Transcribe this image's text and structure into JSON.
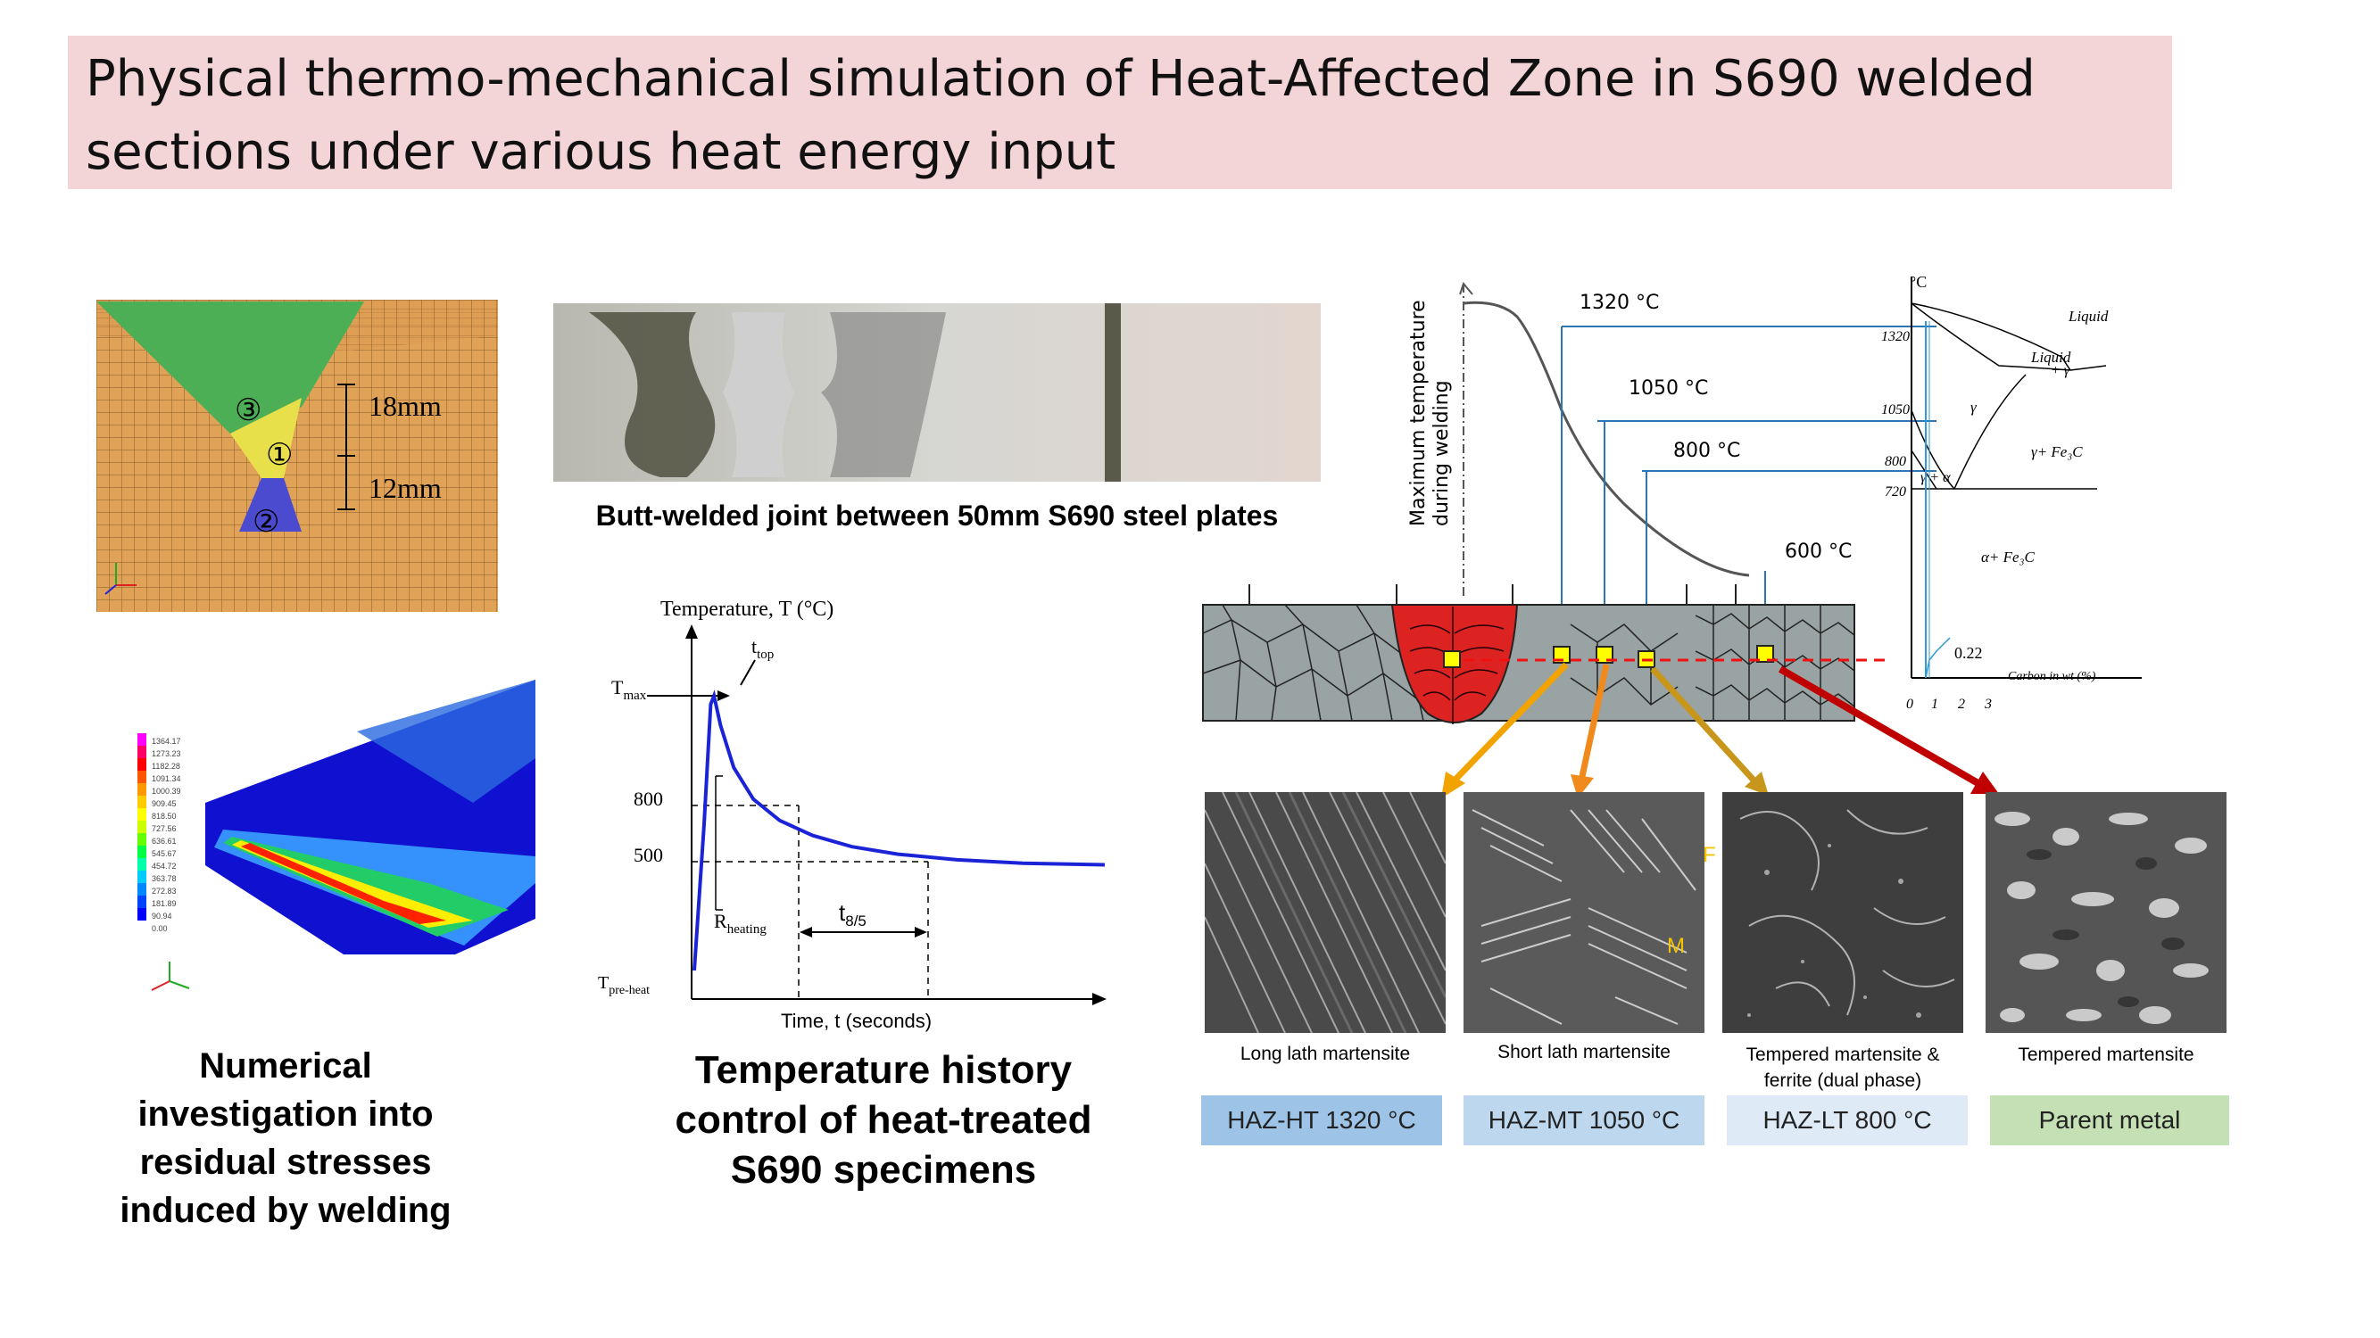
{
  "title": {
    "line1": "Physical thermo-mechanical simulation of Heat-Affected Zone in S690 welded",
    "line2": "sections under various heat energy input"
  },
  "fe_model": {
    "dim_top": "18mm",
    "dim_bottom": "12mm",
    "pass_1": "①",
    "pass_2": "②",
    "pass_3": "③"
  },
  "photo_caption": "Butt-welded joint between 50mm S690 steel plates",
  "stress_caption": [
    "Numerical",
    "investigation into",
    "residual stresses",
    "induced by welding"
  ],
  "stress_legend": [
    "1364.17",
    "1273.23",
    "1182.28",
    "1091.34",
    "1000.39",
    "909.45",
    "818.50",
    "727.56",
    "636.61",
    "545.67",
    "454.72",
    "363.78",
    "272.83",
    "181.89",
    "90.94",
    "0.00"
  ],
  "thermal_chart": {
    "ylabel": "Temperature, T (°C)",
    "xlabel": "Time, t (seconds)",
    "tmax": "T",
    "tmax_sub": "max",
    "ttop": "t",
    "ttop_sub": "top",
    "tpre": "T",
    "tpre_sub": "pre-heat",
    "rheat": "R",
    "rheat_sub": "heating",
    "t85": "t",
    "t85_sub": "8/5",
    "tick_800": "800",
    "tick_500": "500"
  },
  "chart_data": {
    "type": "line",
    "title": "",
    "xlabel": "Time, t (seconds)",
    "ylabel": "Temperature, T (°C)",
    "series": [
      {
        "name": "",
        "x": [
          0,
          3,
          5,
          6,
          8,
          12,
          18,
          26,
          36,
          48,
          62,
          80,
          100,
          125
        ],
        "y": [
          150,
          700,
          1280,
          1320,
          1180,
          980,
          830,
          720,
          640,
          580,
          540,
          510,
          495,
          490
        ]
      }
    ]
  },
  "thermal_caption": [
    "Temperature history",
    "control of heat-treated",
    "S690 specimens"
  ],
  "haz_chart": {
    "ylabel_1": "Maximum temperature",
    "ylabel_2": "during welding",
    "t1320": "1320 °C",
    "t1050": "1050 °C",
    "t800": "800 °C",
    "t600": "600 °C"
  },
  "phase_diagram": {
    "axis_unit": "°C",
    "liquid": "Liquid",
    "liquid_gamma": "Liquid",
    "liquid_gamma2": "+ γ",
    "gamma": "γ",
    "gamma_fe3c": "γ+ Fe₃C",
    "gamma_alpha": "γ + α",
    "alpha_fe3c": "α+ Fe₃C",
    "c022": "0.22",
    "carbon_axis": "Carbon in wt (%)",
    "y1320": "1320",
    "y1050": "1050",
    "y800": "800",
    "y720": "720",
    "x0": "0",
    "x1": "1",
    "x2": "2",
    "x3": "3"
  },
  "micrographs": [
    {
      "desc": "Long lath martensite",
      "zone": "HAZ-HT 1320 °C",
      "color": "#9dc3e6"
    },
    {
      "desc": "Short lath martensite",
      "zone": "HAZ-MT 1050 °C",
      "color": "#bdd7ee"
    },
    {
      "desc": "Tempered martensite & ferrite (dual phase)",
      "zone": "HAZ-LT 800 °C",
      "color": "#deebf7"
    },
    {
      "desc": "Tempered martensite",
      "zone": "Parent metal",
      "color": "#c5e0b4"
    }
  ],
  "micro_markers": {
    "f": "F",
    "m": "M"
  },
  "colors": {
    "title_bg": "#f4d5d7",
    "weld_red": "#dd2222",
    "curve_blue": "#1a24d6",
    "line_blue": "#2e75b6"
  }
}
